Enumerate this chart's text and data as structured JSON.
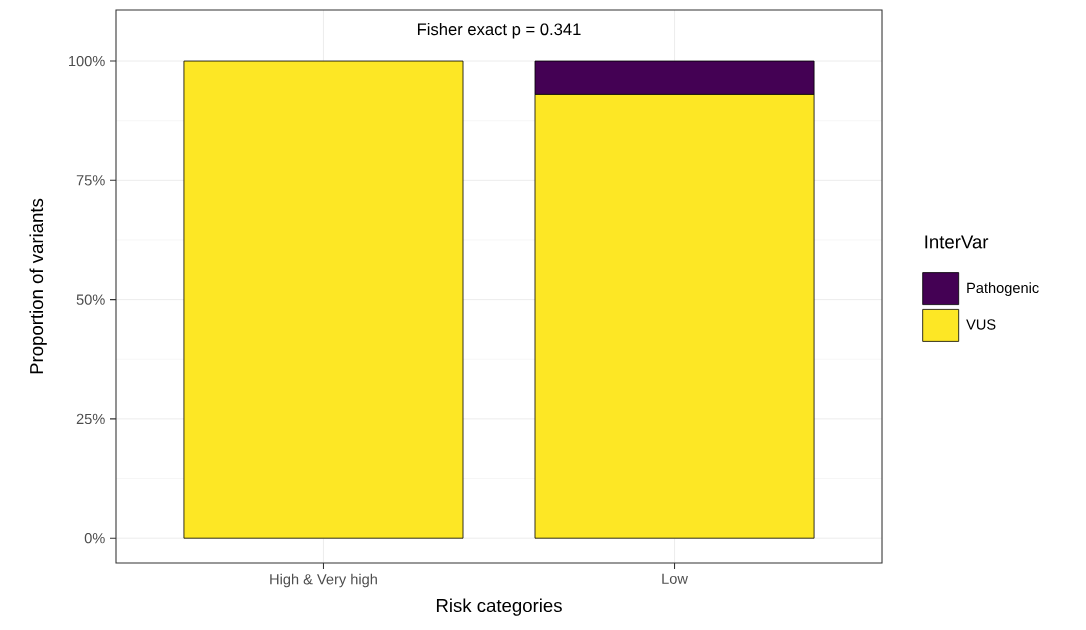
{
  "chart_data": {
    "type": "bar",
    "stacked": true,
    "categories": [
      "High & Very high",
      "Low"
    ],
    "series": [
      {
        "name": "VUS",
        "color": "#fde725",
        "values": [
          100,
          93
        ]
      },
      {
        "name": "Pathogenic",
        "color": "#440154",
        "values": [
          0,
          7
        ]
      }
    ],
    "xlabel": "Risk categories",
    "ylabel": "Proportion of variants",
    "legend_title": "InterVar",
    "annotations": [
      "Fisher exact p = 0.341"
    ],
    "ylim": [
      -5.2,
      110.7
    ],
    "yticks": [
      {
        "value": 0,
        "label": "0%"
      },
      {
        "value": 25,
        "label": "25%"
      },
      {
        "value": 50,
        "label": "50%"
      },
      {
        "value": 75,
        "label": "75%"
      },
      {
        "value": 100,
        "label": "100%"
      }
    ],
    "grid": true,
    "legend": "right"
  }
}
